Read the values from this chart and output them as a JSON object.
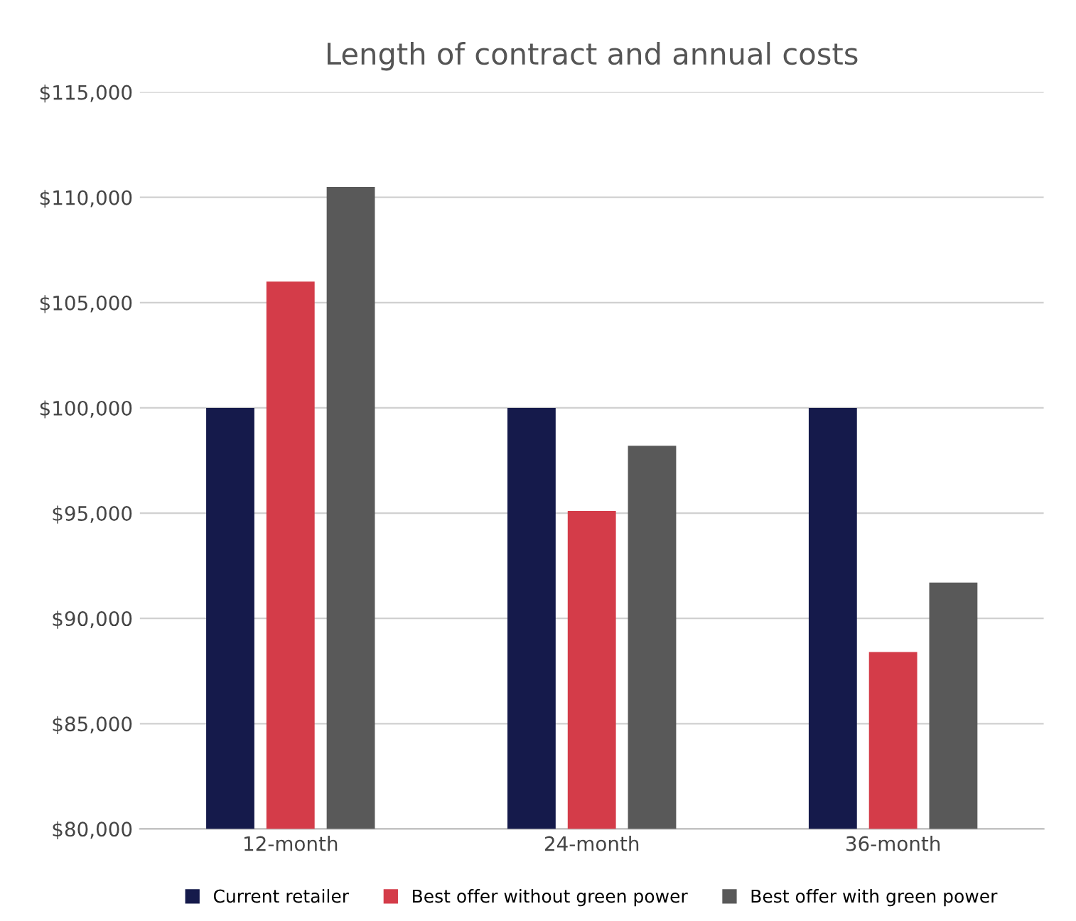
{
  "chart_data": {
    "type": "bar",
    "title": "Length of contract and annual costs",
    "categories": [
      "12-month",
      "24-month",
      "36-month"
    ],
    "series": [
      {
        "name": "Current retailer",
        "color": "#151a4b",
        "values": [
          100000,
          100000,
          100000
        ]
      },
      {
        "name": "Best offer without green power",
        "color": "#d43c49",
        "values": [
          106000,
          95100,
          88400
        ]
      },
      {
        "name": "Best offer with green power",
        "color": "#595959",
        "values": [
          110500,
          98200,
          91700
        ]
      }
    ],
    "ylim": [
      80000,
      115000
    ],
    "yticks": [
      {
        "value": 80000,
        "label": "$80,000"
      },
      {
        "value": 85000,
        "label": "$85,000"
      },
      {
        "value": 90000,
        "label": "$90,000"
      },
      {
        "value": 95000,
        "label": "$95,000"
      },
      {
        "value": 100000,
        "label": "$100,000"
      },
      {
        "value": 105000,
        "label": "$105,000"
      },
      {
        "value": 110000,
        "label": "$110,000"
      },
      {
        "value": 115000,
        "label": "$115,000"
      }
    ],
    "grid": "y",
    "legend": "bottom"
  }
}
